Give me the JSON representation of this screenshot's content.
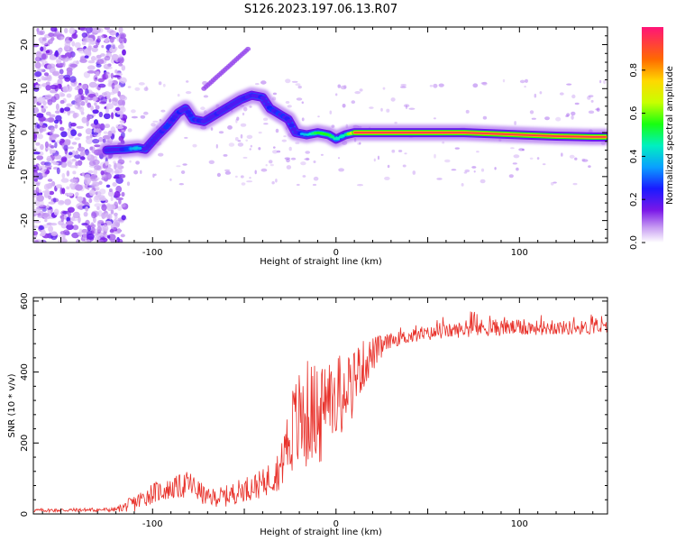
{
  "title": "S126.2023.197.06.13.R07",
  "chart_data": [
    {
      "type": "heatmap",
      "xlabel": "Height of straight line (km)",
      "ylabel": "Frequency (Hz)",
      "xlim": [
        -165,
        148
      ],
      "ylim": [
        -25,
        24
      ],
      "xticks": [
        -100,
        0,
        100
      ],
      "yticks": [
        -20,
        -10,
        0,
        10,
        20
      ],
      "ytick_labels": [
        "-20",
        "-10",
        "0",
        "10",
        "20"
      ],
      "colorbar": {
        "label": "Normalized spectral amplitude",
        "range": [
          0,
          1
        ],
        "ticks": [
          "0.0",
          "0.2",
          "0.4",
          "0.6",
          "0.8"
        ],
        "tick_values": [
          0.0,
          0.2,
          0.4,
          0.6,
          0.8
        ]
      },
      "ridge": [
        [
          -125,
          -4,
          0.25
        ],
        [
          -115,
          -3.8,
          0.35
        ],
        [
          -108,
          -3.5,
          0.45
        ],
        [
          -104,
          -3.8,
          0.3
        ],
        [
          -98,
          -1,
          0.3
        ],
        [
          -92,
          1.5,
          0.35
        ],
        [
          -86,
          4.5,
          0.35
        ],
        [
          -82,
          5.5,
          0.3
        ],
        [
          -78,
          3,
          0.35
        ],
        [
          -72,
          2.5,
          0.3
        ],
        [
          -66,
          4,
          0.3
        ],
        [
          -60,
          5.5,
          0.35
        ],
        [
          -52,
          7.5,
          0.3
        ],
        [
          -46,
          8.5,
          0.35
        ],
        [
          -40,
          8,
          0.3
        ],
        [
          -36,
          5.5,
          0.35
        ],
        [
          -30,
          4,
          0.35
        ],
        [
          -26,
          3,
          0.3
        ],
        [
          -22,
          0,
          0.35
        ],
        [
          -16,
          -0.5,
          0.45
        ],
        [
          -10,
          0,
          0.6
        ],
        [
          -4,
          -0.5,
          0.6
        ],
        [
          0,
          -1.5,
          0.5
        ],
        [
          5,
          -0.5,
          0.5
        ],
        [
          10,
          0,
          0.95
        ],
        [
          40,
          0,
          0.95
        ],
        [
          70,
          0,
          0.95
        ],
        [
          100,
          -0.5,
          0.9
        ],
        [
          120,
          -0.8,
          0.85
        ],
        [
          140,
          -1,
          0.8
        ],
        [
          147,
          -1,
          0.8
        ]
      ]
    },
    {
      "type": "line",
      "xlabel": "Height of straight line (km)",
      "ylabel": "SNR (10 * v/v)",
      "xlim": [
        -165,
        148
      ],
      "ylim": [
        0,
        610
      ],
      "xticks": [
        -100,
        0,
        100
      ],
      "yticks": [
        0,
        200,
        400,
        600
      ],
      "color": "#e8312a",
      "envelope": [
        [
          -165,
          10,
          5
        ],
        [
          -120,
          12,
          6
        ],
        [
          -110,
          30,
          25
        ],
        [
          -100,
          60,
          30
        ],
        [
          -90,
          70,
          30
        ],
        [
          -80,
          85,
          40
        ],
        [
          -70,
          45,
          25
        ],
        [
          -60,
          50,
          30
        ],
        [
          -50,
          70,
          35
        ],
        [
          -40,
          85,
          40
        ],
        [
          -30,
          130,
          60
        ],
        [
          -25,
          230,
          120
        ],
        [
          -20,
          260,
          150
        ],
        [
          -15,
          280,
          160
        ],
        [
          -10,
          300,
          120
        ],
        [
          -5,
          330,
          110
        ],
        [
          0,
          350,
          100
        ],
        [
          10,
          390,
          90
        ],
        [
          20,
          450,
          50
        ],
        [
          30,
          490,
          20
        ],
        [
          40,
          500,
          20
        ],
        [
          60,
          515,
          20
        ],
        [
          80,
          525,
          25
        ],
        [
          100,
          525,
          22
        ],
        [
          120,
          525,
          20
        ],
        [
          148,
          525,
          20
        ]
      ]
    }
  ]
}
